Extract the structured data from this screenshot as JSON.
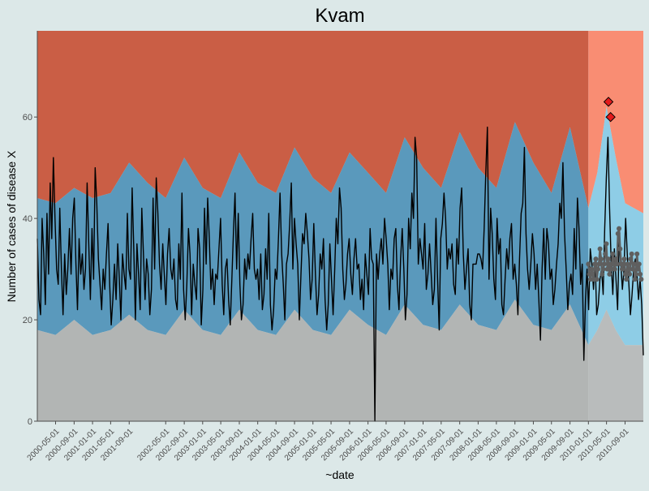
{
  "chart_data": {
    "type": "area",
    "title": "Kvam",
    "xlabel": "~date",
    "ylabel": "Number of cases of disease X",
    "ylim": [
      0,
      77
    ],
    "yticks": [
      0,
      20,
      40,
      60
    ],
    "x_range": [
      "2000-01-01",
      "2010-12-31"
    ],
    "xticks": [
      "2000-05-01",
      "2000-09-01",
      "2001-01-01",
      "2001-05-01",
      "2001-09-01",
      "2002-05-01",
      "2002-09-01",
      "2003-01-01",
      "2003-05-01",
      "2003-09-01",
      "2004-01-01",
      "2004-05-01",
      "2004-09-01",
      "2005-01-01",
      "2005-05-01",
      "2005-09-01",
      "2006-01-01",
      "2006-05-01",
      "2006-09-01",
      "2007-01-01",
      "2007-05-01",
      "2007-09-01",
      "2008-01-01",
      "2008-05-01",
      "2008-09-01",
      "2009-01-01",
      "2009-05-01",
      "2009-09-01",
      "2010-01-01",
      "2010-05-01",
      "2010-09-01"
    ],
    "baseline_split_date": "2010-01-01",
    "grid": false,
    "legend": "none",
    "colors": {
      "background": "#dce8e8",
      "zone_high_baseline": "#ca5e45",
      "zone_high_prediction": "#f98d73",
      "zone_mid_baseline": "#5a99bc",
      "zone_mid_prediction": "#8ecde6",
      "zone_low_baseline": "#b2b5b4",
      "zone_low_prediction": "#b9bcbc",
      "observed_line": "#000000",
      "expected_line": "#5f5f5f",
      "alert_marker": "#e31a1c"
    },
    "zone_boundaries": {
      "dates": [
        "2000-01-01",
        "2000-05-01",
        "2000-09-01",
        "2001-01-01",
        "2001-05-01",
        "2001-09-01",
        "2002-01-01",
        "2002-05-01",
        "2002-09-01",
        "2003-01-01",
        "2003-05-01",
        "2003-09-01",
        "2004-01-01",
        "2004-05-01",
        "2004-09-01",
        "2005-01-01",
        "2005-05-01",
        "2005-09-01",
        "2006-01-01",
        "2006-05-01",
        "2006-09-01",
        "2007-01-01",
        "2007-05-01",
        "2007-09-01",
        "2008-01-01",
        "2008-05-01",
        "2008-09-01",
        "2009-01-01",
        "2009-05-01",
        "2009-09-01",
        "2010-01-01",
        "2010-03-01",
        "2010-05-01",
        "2010-07-01",
        "2010-09-01",
        "2010-12-31"
      ],
      "upper": [
        44,
        43,
        46,
        44,
        45,
        51,
        47,
        44,
        52,
        46,
        44,
        53,
        47,
        45,
        54,
        48,
        45,
        53,
        49,
        45,
        56,
        50,
        46,
        57,
        50,
        46,
        59,
        51,
        45,
        58,
        42,
        49,
        62,
        52,
        43,
        41
      ],
      "lower": [
        18,
        17,
        20,
        17,
        18,
        21,
        18,
        17,
        22,
        18,
        17,
        22,
        18,
        17,
        22,
        18,
        17,
        22,
        19,
        17,
        23,
        19,
        18,
        23,
        19,
        18,
        24,
        19,
        18,
        23,
        15,
        18,
        22,
        18,
        15,
        15
      ]
    },
    "series": [
      {
        "values": [
          36,
          24,
          21,
          40,
          33,
          23,
          41,
          29,
          47,
          36,
          52,
          40,
          30,
          27,
          42,
          30,
          21,
          33,
          25,
          30,
          38,
          29,
          40,
          44,
          31,
          22,
          36,
          29,
          33,
          26,
          30,
          47,
          35,
          24,
          38,
          28,
          50,
          43,
          32,
          27,
          22,
          30,
          26,
          33,
          39,
          27,
          19,
          24,
          31,
          24,
          35,
          28,
          20,
          33,
          29,
          26,
          41,
          30,
          28,
          46,
          34,
          20,
          35,
          29,
          22,
          42,
          33,
          24,
          32,
          29,
          21,
          26,
          44,
          30,
          48,
          41,
          31,
          26,
          35,
          29,
          23,
          33,
          38,
          30,
          28,
          32,
          24,
          22,
          35,
          28,
          45,
          26,
          20,
          27,
          38,
          33,
          21,
          31,
          27,
          24,
          38,
          34,
          19,
          26,
          42,
          31,
          44,
          36,
          26,
          30,
          23,
          29,
          28,
          34,
          40,
          27,
          21,
          30,
          32,
          24,
          19,
          28,
          37,
          45,
          30,
          41,
          27,
          20,
          23,
          32,
          28,
          33,
          30,
          36,
          41,
          30,
          28,
          30,
          24,
          33,
          22,
          25,
          34,
          28,
          41,
          23,
          18,
          22,
          30,
          28,
          36,
          45,
          33,
          27,
          20,
          31,
          33,
          39,
          47,
          30,
          40,
          35,
          31,
          20,
          29,
          37,
          35,
          41,
          37,
          32,
          24,
          28,
          39,
          29,
          21,
          25,
          33,
          30,
          36,
          24,
          18,
          23,
          35,
          28,
          21,
          30,
          40,
          35,
          46,
          42,
          30,
          24,
          27,
          33,
          36,
          29,
          25,
          32,
          36,
          30,
          31,
          24,
          28,
          22,
          33,
          29,
          25,
          38,
          32,
          31,
          0,
          33,
          28,
          33,
          36,
          31,
          40,
          36,
          31,
          22,
          30,
          28,
          36,
          38,
          27,
          22,
          32,
          38,
          30,
          20,
          25,
          40,
          34,
          45,
          40,
          56,
          52,
          31,
          36,
          33,
          30,
          39,
          26,
          29,
          35,
          29,
          23,
          26,
          40,
          28,
          18,
          36,
          39,
          45,
          40,
          30,
          34,
          32,
          35,
          27,
          25,
          36,
          31,
          42,
          46,
          33,
          26,
          30,
          34,
          23,
          20,
          31,
          31,
          31,
          33,
          33,
          32,
          30,
          38,
          49,
          58,
          28,
          42,
          37,
          28,
          24,
          40,
          33,
          36,
          23,
          21,
          28,
          34,
          30,
          36,
          39,
          28,
          31,
          27,
          21,
          32,
          41,
          43,
          54,
          37,
          30,
          26,
          31,
          37,
          33,
          26,
          31,
          24,
          16,
          30,
          38,
          28,
          38,
          35,
          28,
          30,
          23,
          26,
          31,
          35,
          43,
          40,
          51,
          37,
          30,
          22,
          27,
          29,
          25,
          38,
          30,
          44,
          38,
          27,
          31,
          12,
          24,
          30,
          22,
          34,
          31,
          26,
          32,
          21,
          23,
          28,
          30,
          25,
          38,
          48,
          56,
          42,
          31,
          25,
          34,
          28,
          22,
          36,
          31,
          26,
          30,
          40,
          33,
          27,
          21,
          25,
          30,
          32,
          29,
          24,
          28,
          23,
          13
        ],
        "color": "#000000"
      },
      {
        "dates": [
          "2010-01-01",
          "2010-01-08",
          "2010-01-15",
          "2010-01-22",
          "2010-01-29",
          "2010-02-05",
          "2010-02-12",
          "2010-02-19",
          "2010-02-26",
          "2010-03-05",
          "2010-03-12",
          "2010-03-19",
          "2010-03-26",
          "2010-04-02",
          "2010-04-09",
          "2010-04-16",
          "2010-04-23",
          "2010-04-30",
          "2010-05-07",
          "2010-05-14",
          "2010-05-21",
          "2010-05-28",
          "2010-06-04",
          "2010-06-11",
          "2010-06-18",
          "2010-06-25",
          "2010-07-02",
          "2010-07-09",
          "2010-07-16",
          "2010-07-23",
          "2010-07-30",
          "2010-08-06",
          "2010-08-13",
          "2010-08-20",
          "2010-08-27",
          "2010-09-03",
          "2010-09-10",
          "2010-09-17",
          "2010-09-24",
          "2010-10-01",
          "2010-10-08",
          "2010-10-15",
          "2010-10-22",
          "2010-10-29",
          "2010-11-05",
          "2010-11-12",
          "2010-11-19",
          "2010-11-26",
          "2010-12-03",
          "2010-12-10",
          "2010-12-17"
        ],
        "values": [
          31,
          29,
          28,
          30,
          29,
          28,
          31,
          32,
          28,
          30,
          31,
          34,
          32,
          29,
          30,
          31,
          33,
          35,
          30,
          32,
          29,
          31,
          30,
          33,
          31,
          30,
          32,
          31,
          37,
          38,
          34,
          31,
          30,
          31,
          32,
          29,
          28,
          31,
          30,
          29,
          32,
          33,
          30,
          31,
          28,
          29,
          33,
          30,
          31,
          29,
          28
        ],
        "color": "#5f5f5f"
      }
    ],
    "alerts": [
      {
        "date": "2010-05-14",
        "value": 63
      },
      {
        "date": "2010-05-28",
        "value": 60
      }
    ]
  }
}
